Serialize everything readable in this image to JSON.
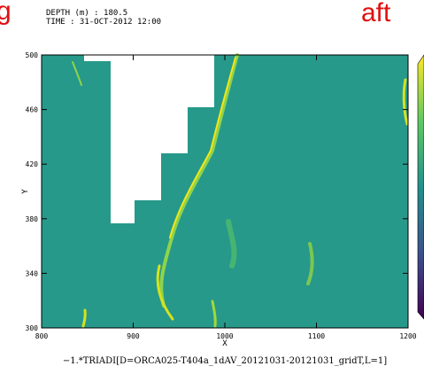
{
  "header_left": "g",
  "header_right": "aft",
  "chart_data": {
    "type": "heatmap",
    "subtitle_lines": [
      "DEPTH (m) : 180.5",
      "TIME : 31-OCT-2012 12:00"
    ],
    "xlabel": "X",
    "ylabel": "Y",
    "caption": "−1.*TRIADI[D=ORCA025-T404a_1dAV_20121031-20121031_gridT,L=1]",
    "xlim": [
      800,
      1200
    ],
    "ylim": [
      300,
      500
    ],
    "xticks": [
      800,
      900,
      1000,
      1100,
      1200
    ],
    "yticks": [
      300,
      340,
      380,
      420,
      460,
      500
    ],
    "color": "#26998a"
  }
}
